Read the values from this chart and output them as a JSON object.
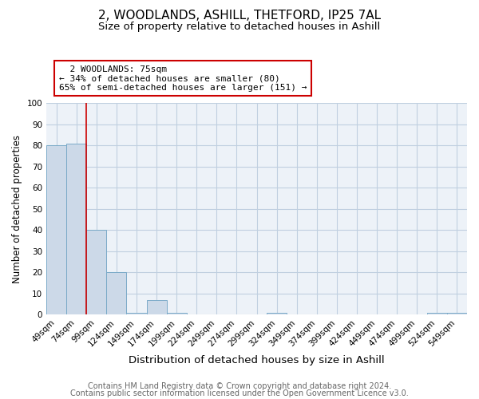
{
  "title": "2, WOODLANDS, ASHILL, THETFORD, IP25 7AL",
  "subtitle": "Size of property relative to detached houses in Ashill",
  "xlabel": "Distribution of detached houses by size in Ashill",
  "ylabel": "Number of detached properties",
  "categories": [
    "49sqm",
    "74sqm",
    "99sqm",
    "124sqm",
    "149sqm",
    "174sqm",
    "199sqm",
    "224sqm",
    "249sqm",
    "274sqm",
    "299sqm",
    "324sqm",
    "349sqm",
    "374sqm",
    "399sqm",
    "424sqm",
    "449sqm",
    "474sqm",
    "499sqm",
    "524sqm",
    "549sqm"
  ],
  "values": [
    80,
    81,
    40,
    20,
    1,
    7,
    1,
    0,
    0,
    0,
    0,
    1,
    0,
    0,
    0,
    0,
    0,
    0,
    0,
    1,
    1
  ],
  "bar_color": "#ccd9e8",
  "bar_edge_color": "#7aaac8",
  "property_line_color": "#cc0000",
  "annotation_line1": "2 WOODLANDS: 75sqm",
  "annotation_line2": "← 34% of detached houses are smaller (80)",
  "annotation_line3": "65% of semi-detached houses are larger (151) →",
  "annotation_box_color": "#ffffff",
  "annotation_box_edge": "#cc0000",
  "ylim": [
    0,
    100
  ],
  "yticks": [
    0,
    10,
    20,
    30,
    40,
    50,
    60,
    70,
    80,
    90,
    100
  ],
  "grid_color": "#c0cfe0",
  "background_color": "#edf2f8",
  "footer1": "Contains HM Land Registry data © Crown copyright and database right 2024.",
  "footer2": "Contains public sector information licensed under the Open Government Licence v3.0.",
  "title_fontsize": 11,
  "subtitle_fontsize": 9.5,
  "xlabel_fontsize": 9.5,
  "ylabel_fontsize": 8.5,
  "tick_fontsize": 7.5,
  "annotation_fontsize": 8,
  "footer_fontsize": 7
}
